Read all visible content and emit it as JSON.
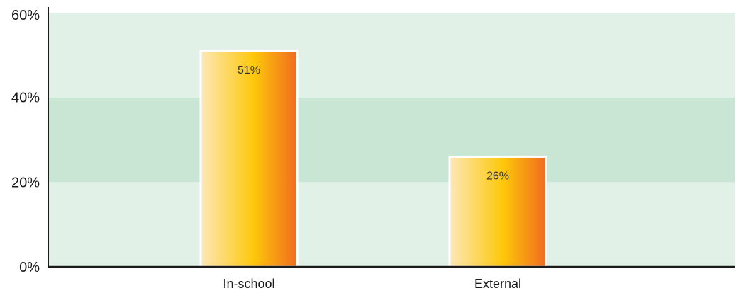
{
  "chart_data": {
    "type": "bar",
    "categories": [
      "In-school",
      "External"
    ],
    "values": [
      51,
      26
    ],
    "value_labels": [
      "51%",
      "26%"
    ],
    "ylim": [
      0,
      60
    ],
    "yticks": [
      0,
      20,
      40,
      60
    ],
    "ytick_labels": [
      "0%",
      "20%",
      "40%",
      "60%"
    ],
    "title": "",
    "xlabel": "",
    "ylabel": "",
    "grid": false,
    "legend": "none",
    "colors": {
      "band_light": "#e2f1e8",
      "band_dark": "#c9e6d4",
      "bar_gradient": [
        "#fde8b8",
        "#fdc80a",
        "#f26b1f"
      ],
      "bar_border": "#ffffff",
      "axis": "#1a1a1a"
    }
  }
}
